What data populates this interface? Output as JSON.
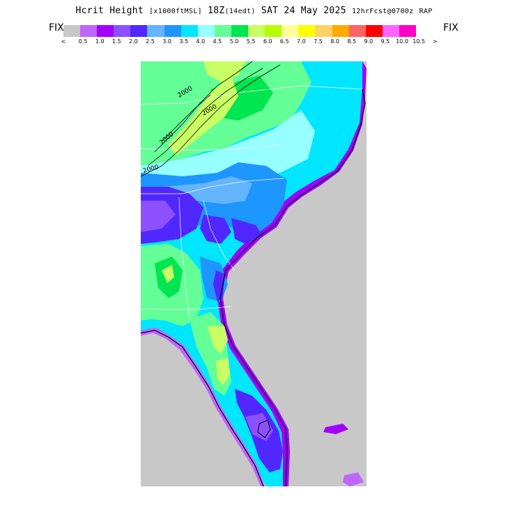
{
  "header": {
    "title_main": "Hcrit Height",
    "title_units": "[x1000ftMSL]",
    "title_valid": "18Z",
    "title_valid_local": "(14edt)",
    "title_date": "SAT 24 May 2025",
    "title_forecast": "12hrFcst@0700z",
    "title_model": "RAP"
  },
  "legend": {
    "fix_left": "FIX",
    "fix_right": "FIX",
    "under_marker": "<",
    "over_marker": ">",
    "colors": [
      "#c8c8c8",
      "#c065ff",
      "#a000ff",
      "#8c50ff",
      "#5028ff",
      "#64b4ff",
      "#1e96ff",
      "#00e6ff",
      "#96ffff",
      "#64ff96",
      "#00e650",
      "#c8ff64",
      "#b4ff00",
      "#ffff96",
      "#ffff00",
      "#ffd264",
      "#ffaa00",
      "#ff6464",
      "#ff0000",
      "#ff64ff",
      "#ff00c8"
    ],
    "tick_labels": [
      "0.5",
      "1.0",
      "1.5",
      "2.0",
      "2.5",
      "3.0",
      "3.5",
      "4.0",
      "4.5",
      "5.0",
      "5.5",
      "6.0",
      "6.5",
      "7.0",
      "7.5",
      "8.0",
      "8.5",
      "9.0",
      "9.5",
      "10.0",
      "10.5"
    ]
  },
  "map": {
    "contour_labels": [
      "2000",
      "2000",
      "2000",
      "2000"
    ],
    "ocean_color": "#c8c8c8"
  }
}
